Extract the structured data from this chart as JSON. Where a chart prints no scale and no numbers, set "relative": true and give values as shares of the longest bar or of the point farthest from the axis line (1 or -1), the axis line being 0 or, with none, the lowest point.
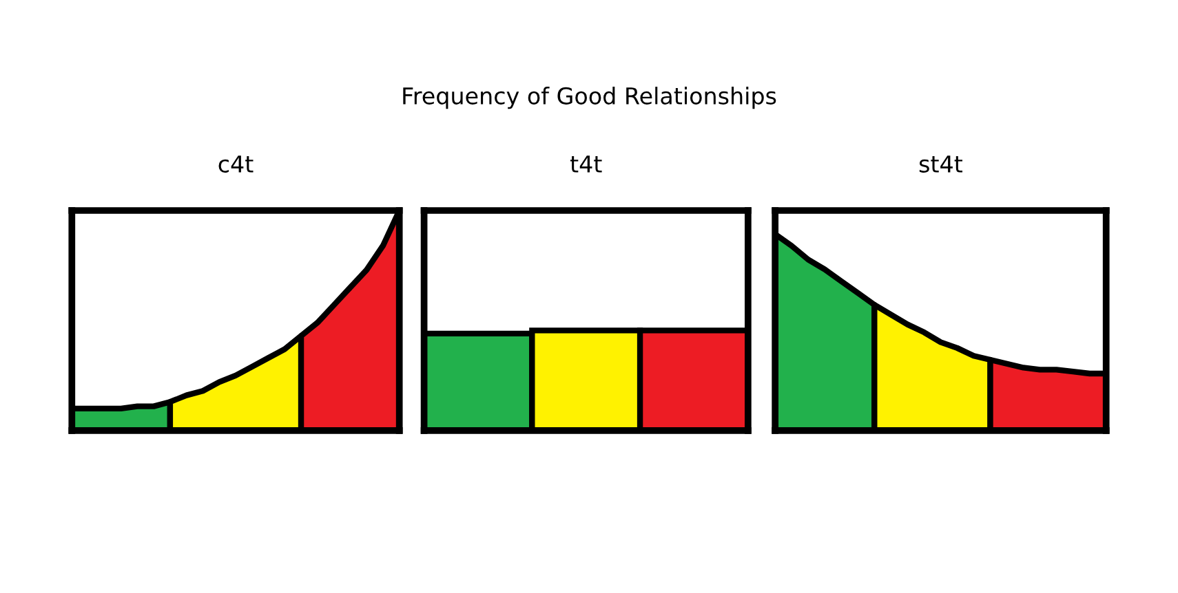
{
  "chart_data": [
    {
      "type": "area",
      "relative": true,
      "title": "Frequency of Good Relationships",
      "subtitle": "c4t",
      "categories": [
        null,
        null,
        null,
        null,
        null,
        null,
        null,
        null,
        null,
        null,
        null,
        null,
        null,
        null,
        null,
        null,
        null,
        null,
        null,
        null,
        null
      ],
      "series": [
        {
          "color": "#22b14c",
          "values": [
            0.1,
            0.1,
            0.1,
            0.1,
            0.11,
            0.11,
            0.13,
            null,
            null,
            null,
            null,
            null,
            null,
            null,
            null,
            null,
            null,
            null,
            null,
            null,
            null
          ]
        },
        {
          "color": "#fff200",
          "values": [
            null,
            null,
            null,
            null,
            null,
            null,
            0.13,
            0.16,
            0.18,
            0.22,
            0.25,
            0.29,
            0.33,
            0.37,
            0.43,
            null,
            null,
            null,
            null,
            null,
            null
          ]
        },
        {
          "color": "#ed1c24",
          "values": [
            null,
            null,
            null,
            null,
            null,
            null,
            null,
            null,
            null,
            null,
            null,
            null,
            null,
            null,
            0.43,
            0.49,
            0.57,
            0.65,
            0.73,
            0.84,
            1.0
          ]
        }
      ]
    },
    {
      "type": "bar",
      "relative": true,
      "subtitle": "t4t",
      "categories": [
        null,
        null,
        null
      ],
      "values": [
        0.97,
        1.0,
        1.0
      ],
      "colors": [
        "#22b14c",
        "#fff200",
        "#ed1c24"
      ]
    },
    {
      "type": "area",
      "relative": true,
      "subtitle": "st4t",
      "categories": [
        null,
        null,
        null,
        null,
        null,
        null,
        null,
        null,
        null,
        null,
        null,
        null,
        null,
        null,
        null,
        null,
        null,
        null,
        null,
        null,
        null
      ],
      "series": [
        {
          "color": "#22b14c",
          "values": [
            1.0,
            0.94,
            0.87,
            0.82,
            0.76,
            0.7,
            0.64,
            null,
            null,
            null,
            null,
            null,
            null,
            null,
            null,
            null,
            null,
            null,
            null,
            null,
            null
          ]
        },
        {
          "color": "#fff200",
          "values": [
            null,
            null,
            null,
            null,
            null,
            null,
            0.64,
            0.59,
            0.54,
            0.5,
            0.45,
            0.42,
            0.38,
            0.36,
            null,
            null,
            null,
            null,
            null,
            null,
            null
          ]
        },
        {
          "color": "#ed1c24",
          "values": [
            null,
            null,
            null,
            null,
            null,
            null,
            null,
            null,
            null,
            null,
            null,
            null,
            null,
            0.36,
            0.34,
            0.32,
            0.31,
            0.31,
            0.3,
            0.29,
            0.29
          ]
        }
      ]
    }
  ]
}
